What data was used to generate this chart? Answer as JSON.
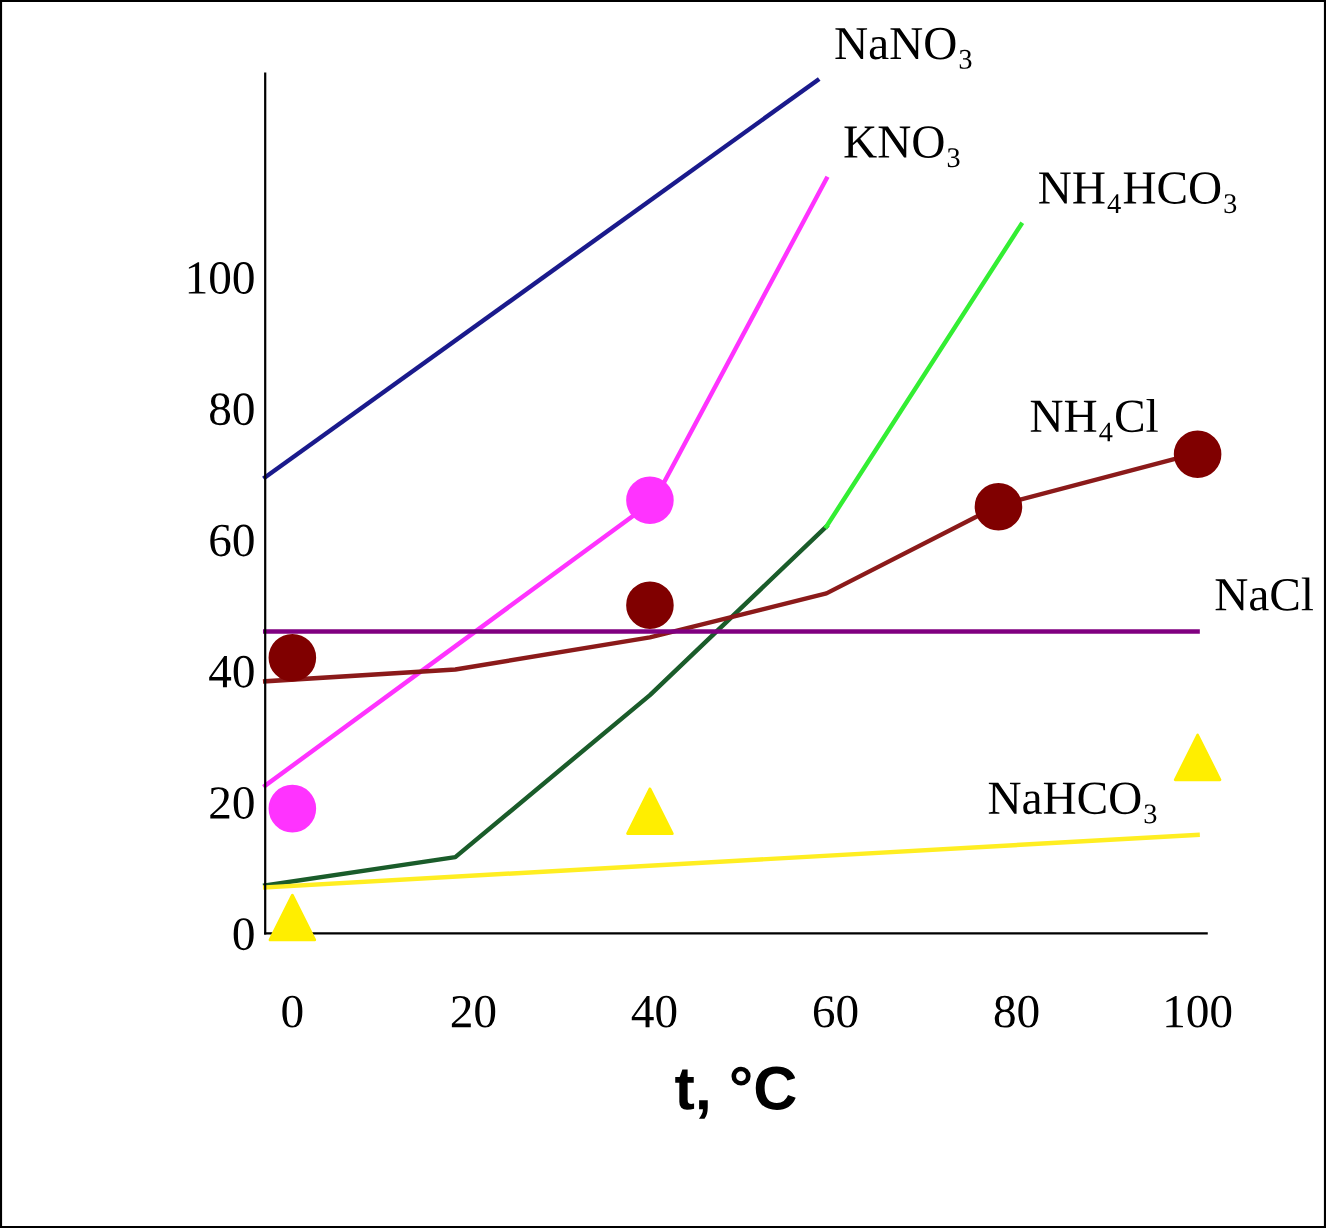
{
  "chart_data": {
    "type": "line",
    "xlabel": "t, °C",
    "xlim": [
      -3,
      101
    ],
    "ylim": [
      0,
      131
    ],
    "xticks": [
      0,
      20,
      40,
      60,
      80,
      100
    ],
    "yticks": [
      0,
      20,
      40,
      60,
      80,
      100
    ],
    "grid": false,
    "legend": false,
    "marker": "none",
    "series": [
      {
        "name": "NaNO₃",
        "color": "#1a1a8c",
        "x": [
          -3,
          58
        ],
        "values": [
          69.5,
          130
        ]
      },
      {
        "name": "KNO₃",
        "color": "#ff33ff",
        "x": [
          -3,
          40,
          59
        ],
        "values": [
          22.5,
          66,
          115
        ]
      },
      {
        "color": "#1a5c2a",
        "x": [
          -3,
          18,
          39.5,
          59
        ],
        "values": [
          7.3,
          11.6,
          36.3,
          62
        ]
      },
      {
        "name": "NH₄HCO₃",
        "color": "#33ee33",
        "x": [
          59,
          80.5
        ],
        "values": [
          62,
          108
        ]
      },
      {
        "name": "NH₄Cl",
        "color": "#8b1a1a",
        "x": [
          -3,
          18,
          39.5,
          59,
          78,
          100
        ],
        "values": [
          38.4,
          40.2,
          45.1,
          51.8,
          65.2,
          73.2
        ]
      },
      {
        "name": "NaCl",
        "color": "#800080",
        "x": [
          -3,
          100
        ],
        "values": [
          46,
          46
        ]
      },
      {
        "name": "NaHCO₃",
        "color": "#ffee22",
        "x": [
          -3,
          100
        ],
        "values": [
          7,
          15
        ]
      },
      {
        "type": "scatter",
        "marker": "circle",
        "color": "#ff33ff",
        "x": [
          0,
          39.5
        ],
        "values": [
          19,
          66
        ]
      },
      {
        "type": "scatter",
        "marker": "circle",
        "color": "#800000",
        "x": [
          0,
          39.5,
          78,
          100
        ],
        "values": [
          42,
          50,
          65,
          73
        ]
      },
      {
        "type": "scatter",
        "marker": "triangle",
        "color": "#ffee00",
        "x": [
          0,
          39.5,
          100
        ],
        "values": [
          2.4,
          18.6,
          26.8
        ]
      }
    ]
  }
}
